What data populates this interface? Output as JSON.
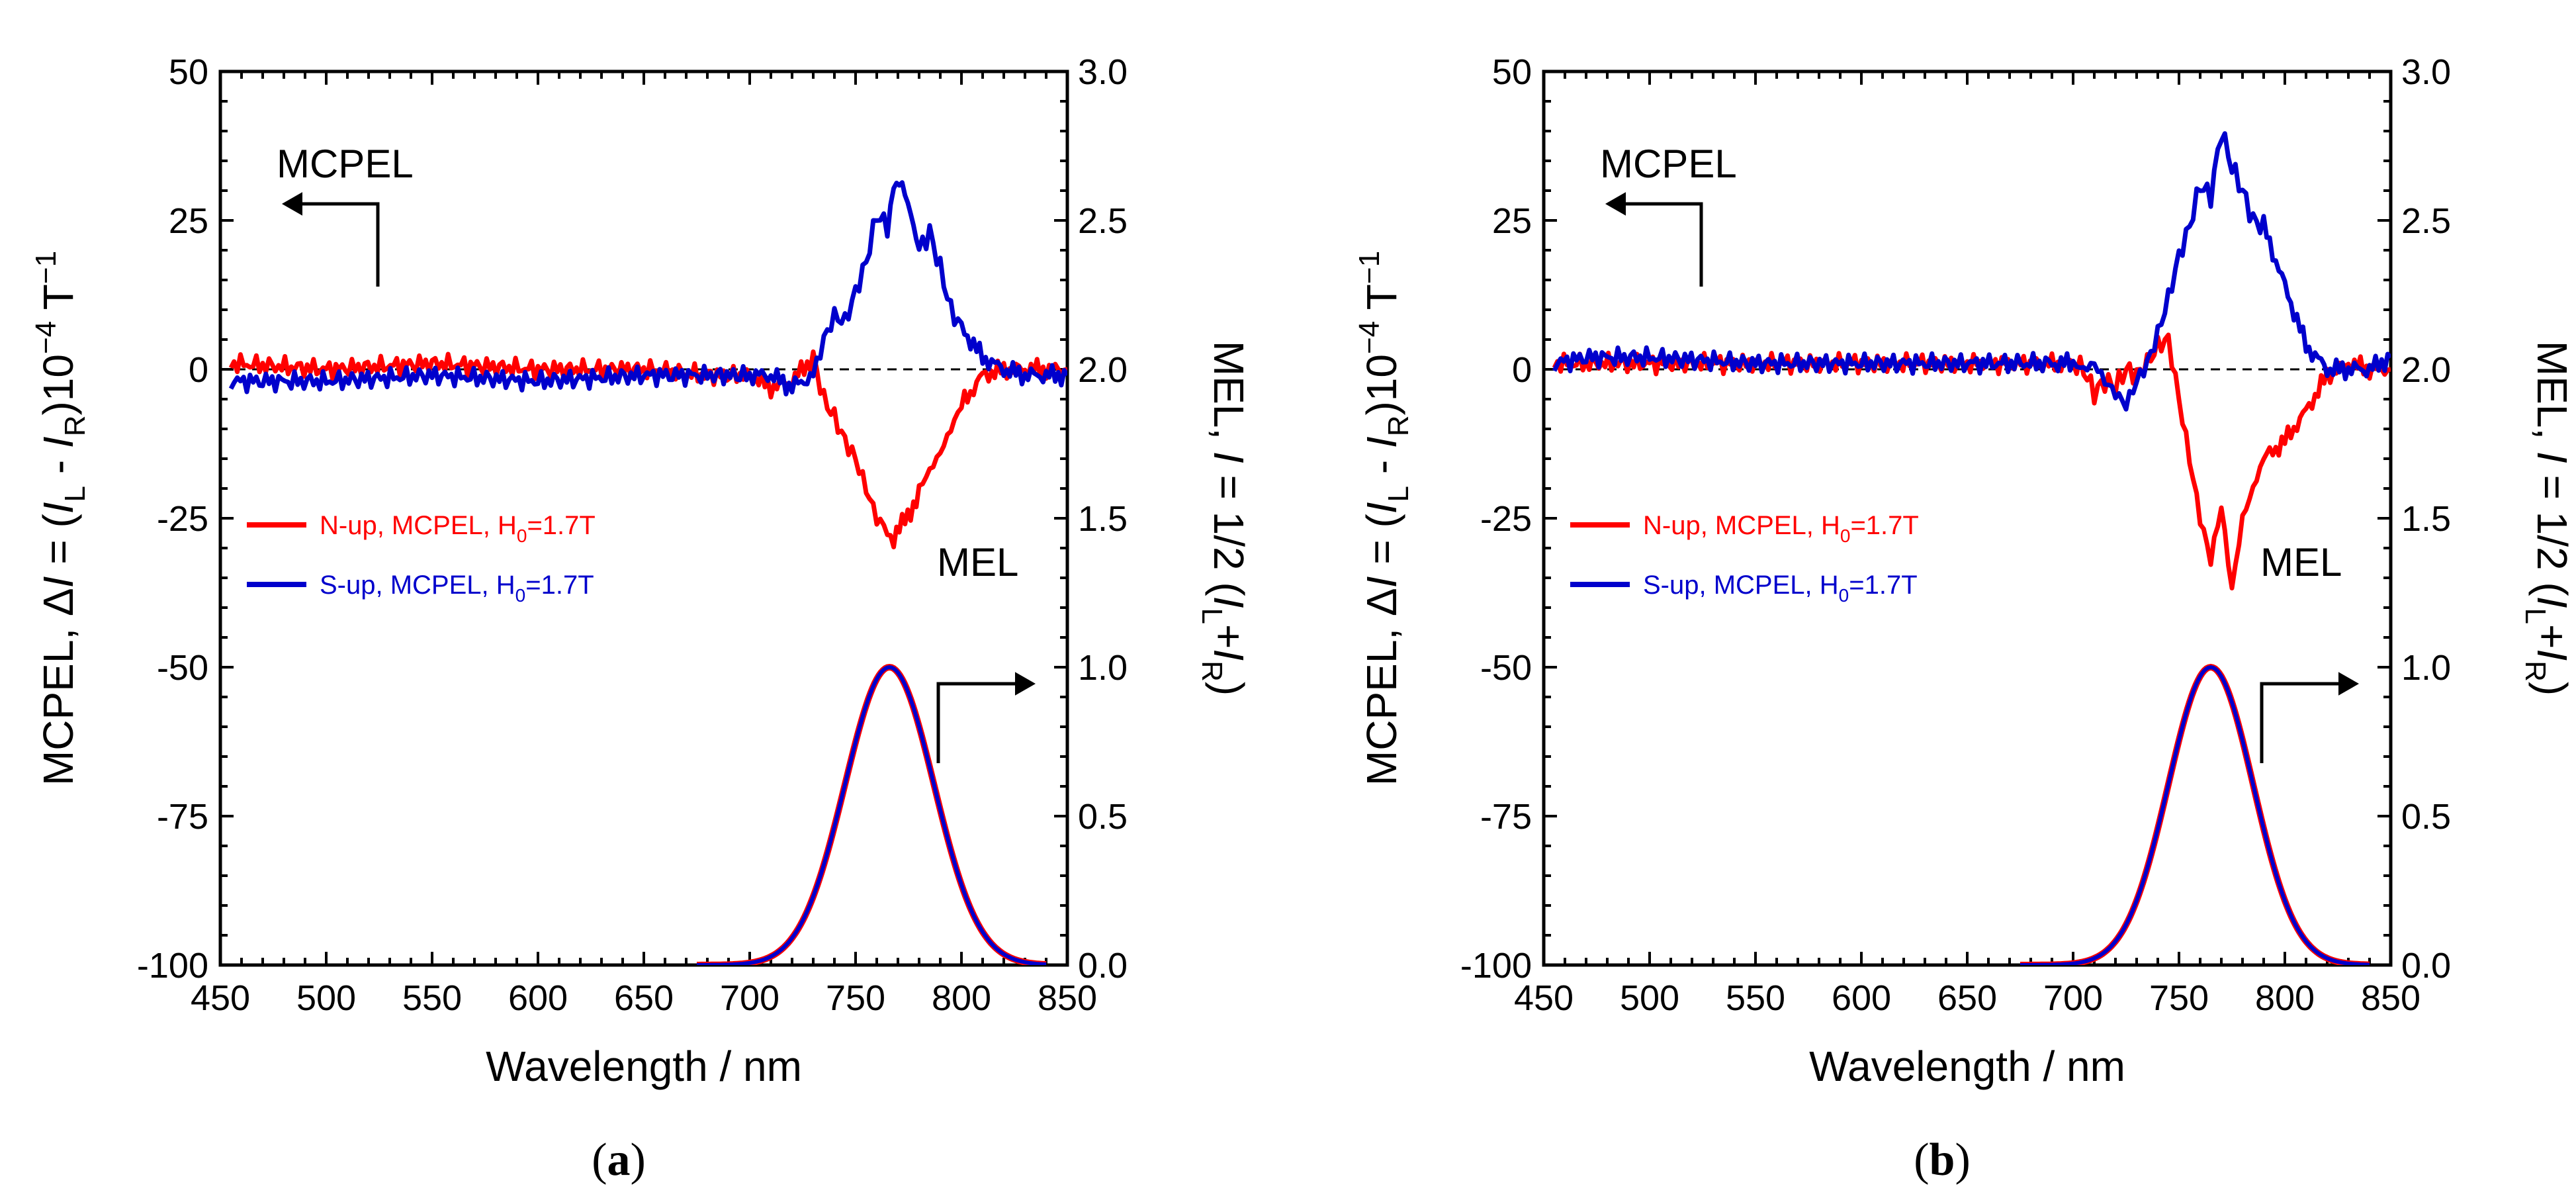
{
  "chart_data": [
    {
      "panel_label": "(a)",
      "type": "line",
      "xlabel": "Wavelength / nm",
      "ylabel_left": "MCPEL, ΔI = (I_L - I_R)10^-4 T^-1",
      "ylabel_right": "MEL, I = 1/2 (I_L + I_R)",
      "ylabel_left_parts": {
        "a": "MCPEL, Δ",
        "b": "I",
        "c": " = (",
        "d": "I",
        "e": "L",
        "f": " - ",
        "g": "I",
        "h": "R",
        "i": ")10",
        "j": "−4",
        "k": " T",
        "l": "−1"
      },
      "ylabel_right_parts": {
        "a": "MEL, ",
        "b": "I",
        "c": " = 1/2 (",
        "d": "I",
        "e": "L",
        "f": "+",
        "g": "I",
        "h": "R",
        "i": ")"
      },
      "xlim": [
        450,
        850
      ],
      "ylim_left": [
        -100,
        50
      ],
      "ylim_right": [
        0.0,
        3.0
      ],
      "xticks": [
        450,
        500,
        550,
        600,
        650,
        700,
        750,
        800,
        850
      ],
      "yticks_left": [
        {
          "v": 50,
          "t": "50"
        },
        {
          "v": 25,
          "t": "25"
        },
        {
          "v": 0,
          "t": "0"
        },
        {
          "v": -25,
          "t": "-25"
        },
        {
          "v": -50,
          "t": "-50"
        },
        {
          "v": -75,
          "t": "-75"
        },
        {
          "v": -100,
          "t": "-100"
        }
      ],
      "yticks_right": [
        {
          "v": 3.0,
          "t": "3.0"
        },
        {
          "v": 2.5,
          "t": "2.5"
        },
        {
          "v": 2.0,
          "t": "2.0"
        },
        {
          "v": 1.5,
          "t": "1.5"
        },
        {
          "v": 1.0,
          "t": "1.0"
        },
        {
          "v": 0.5,
          "t": "0.5"
        },
        {
          "v": 0.0,
          "t": "0.0"
        }
      ],
      "annotations": {
        "mcpel": "MCPEL",
        "mel": "MEL"
      },
      "legend": [
        {
          "name": "N-up, MCPEL, H",
          "sub": "0",
          "tail": "=1.7T",
          "color": "#ff0000"
        },
        {
          "name": "S-up, MCPEL, H",
          "sub": "0",
          "tail": "=1.7T",
          "color": "#0000cc"
        }
      ],
      "mel_peak_nm": 766,
      "mel_peak_value": 1.0,
      "series": [
        {
          "name": "N-up, MCPEL",
          "color": "#ff0000",
          "x": [
            455,
            500,
            550,
            600,
            650,
            680,
            700,
            710,
            720,
            730,
            735,
            740,
            745,
            750,
            755,
            760,
            765,
            768,
            772,
            776,
            780,
            785,
            790,
            795,
            800,
            810,
            820,
            830,
            840,
            850
          ],
          "y": [
            1,
            0,
            1,
            0,
            0,
            -1,
            -1,
            -3,
            -2,
            2,
            -5,
            -8,
            -12,
            -15,
            -20,
            -25,
            -27,
            -29,
            -26,
            -24,
            -20,
            -17,
            -14,
            -10,
            -6,
            -1,
            0,
            0,
            0,
            0
          ]
        },
        {
          "name": "S-up, MCPEL",
          "color": "#0000cc",
          "x": [
            455,
            500,
            550,
            600,
            650,
            680,
            700,
            710,
            720,
            730,
            735,
            740,
            745,
            750,
            755,
            760,
            765,
            768,
            772,
            776,
            780,
            785,
            790,
            795,
            800,
            810,
            820,
            830,
            840,
            850
          ],
          "y": [
            -2,
            -2,
            -1,
            -2,
            -1,
            -1,
            -1,
            -1,
            -3,
            -1,
            5,
            9,
            8,
            13,
            18,
            26,
            24,
            30,
            31,
            27,
            20,
            23,
            17,
            10,
            7,
            2,
            0,
            -1,
            -1,
            -1
          ]
        },
        {
          "name": "MEL (N-up)",
          "color": "#ff0000",
          "peak": 766,
          "sigma": 21,
          "xrange": [
            675,
            840
          ]
        },
        {
          "name": "MEL (S-up)",
          "color": "#0000cc",
          "peak": 766,
          "sigma": 21,
          "xrange": [
            675,
            840
          ]
        }
      ]
    },
    {
      "panel_label": "(b)",
      "type": "line",
      "xlabel": "Wavelength / nm",
      "ylabel_left": "MCPEL, ΔI = (I_L - I_R)10^-4 T^-1",
      "ylabel_right": "MEL, I = 1/2 (I_L + I_R)",
      "ylabel_left_parts": {
        "a": "MCPEL, Δ",
        "b": "I",
        "c": " = (",
        "d": "I",
        "e": "L",
        "f": " - ",
        "g": "I",
        "h": "R",
        "i": ")10",
        "j": "−4",
        "k": " T",
        "l": "−1"
      },
      "ylabel_right_parts": {
        "a": "MEL, ",
        "b": "I",
        "c": " = 1/2 (",
        "d": "I",
        "e": "L",
        "f": "+",
        "g": "I",
        "h": "R",
        "i": ")"
      },
      "xlim": [
        450,
        850
      ],
      "ylim_left": [
        -100,
        50
      ],
      "ylim_right": [
        0.0,
        3.0
      ],
      "xticks": [
        450,
        500,
        550,
        600,
        650,
        700,
        750,
        800,
        850
      ],
      "yticks_left": [
        {
          "v": 50,
          "t": "50"
        },
        {
          "v": 25,
          "t": "25"
        },
        {
          "v": 0,
          "t": "0"
        },
        {
          "v": -25,
          "t": "-25"
        },
        {
          "v": -50,
          "t": "-50"
        },
        {
          "v": -75,
          "t": "-75"
        },
        {
          "v": -100,
          "t": "-100"
        }
      ],
      "yticks_right": [
        {
          "v": 3.0,
          "t": "3.0"
        },
        {
          "v": 2.5,
          "t": "2.5"
        },
        {
          "v": 2.0,
          "t": "2.0"
        },
        {
          "v": 1.5,
          "t": "1.5"
        },
        {
          "v": 1.0,
          "t": "1.0"
        },
        {
          "v": 0.5,
          "t": "0.5"
        },
        {
          "v": 0.0,
          "t": "0.0"
        }
      ],
      "annotations": {
        "mcpel": "MCPEL",
        "mel": "MEL"
      },
      "legend": [
        {
          "name": "N-up, MCPEL, H",
          "sub": "0",
          "tail": "=1.7T",
          "color": "#ff0000"
        },
        {
          "name": "S-up, MCPEL, H",
          "sub": "0",
          "tail": "=1.7T",
          "color": "#0000cc"
        }
      ],
      "mel_peak_nm": 765,
      "mel_peak_value": 1.0,
      "series": [
        {
          "name": "N-up, MCPEL",
          "color": "#ff0000",
          "x": [
            455,
            500,
            550,
            600,
            650,
            690,
            700,
            705,
            710,
            715,
            720,
            725,
            730,
            735,
            740,
            745,
            750,
            755,
            760,
            765,
            770,
            775,
            780,
            785,
            790,
            800,
            810,
            820,
            830,
            840,
            850
          ],
          "y": [
            1,
            1,
            1,
            1,
            1,
            1,
            1,
            0,
            -4,
            -2,
            -3,
            0,
            -1,
            1,
            4,
            5,
            -5,
            -15,
            -25,
            -32,
            -23,
            -37,
            -25,
            -20,
            -15,
            -12,
            -7,
            -1,
            1,
            0,
            0
          ]
        },
        {
          "name": "S-up, MCPEL",
          "color": "#0000cc",
          "x": [
            455,
            470,
            500,
            550,
            600,
            650,
            690,
            700,
            705,
            710,
            715,
            720,
            725,
            730,
            735,
            740,
            745,
            750,
            755,
            760,
            765,
            770,
            775,
            780,
            785,
            790,
            800,
            810,
            820,
            830,
            840,
            850
          ],
          "y": [
            1,
            2,
            2,
            1,
            1,
            1,
            1,
            1,
            0,
            1,
            -2,
            -4,
            -6,
            -2,
            1,
            6,
            12,
            19,
            24,
            31,
            29,
            40,
            34,
            30,
            25,
            24,
            14,
            4,
            0,
            0,
            0,
            2
          ]
        },
        {
          "name": "MEL (N-up)",
          "color": "#ff0000",
          "peak": 765,
          "sigma": 20,
          "xrange": [
            675,
            840
          ]
        },
        {
          "name": "MEL (S-up)",
          "color": "#0000cc",
          "peak": 765,
          "sigma": 20,
          "xrange": [
            675,
            840
          ]
        }
      ]
    }
  ]
}
